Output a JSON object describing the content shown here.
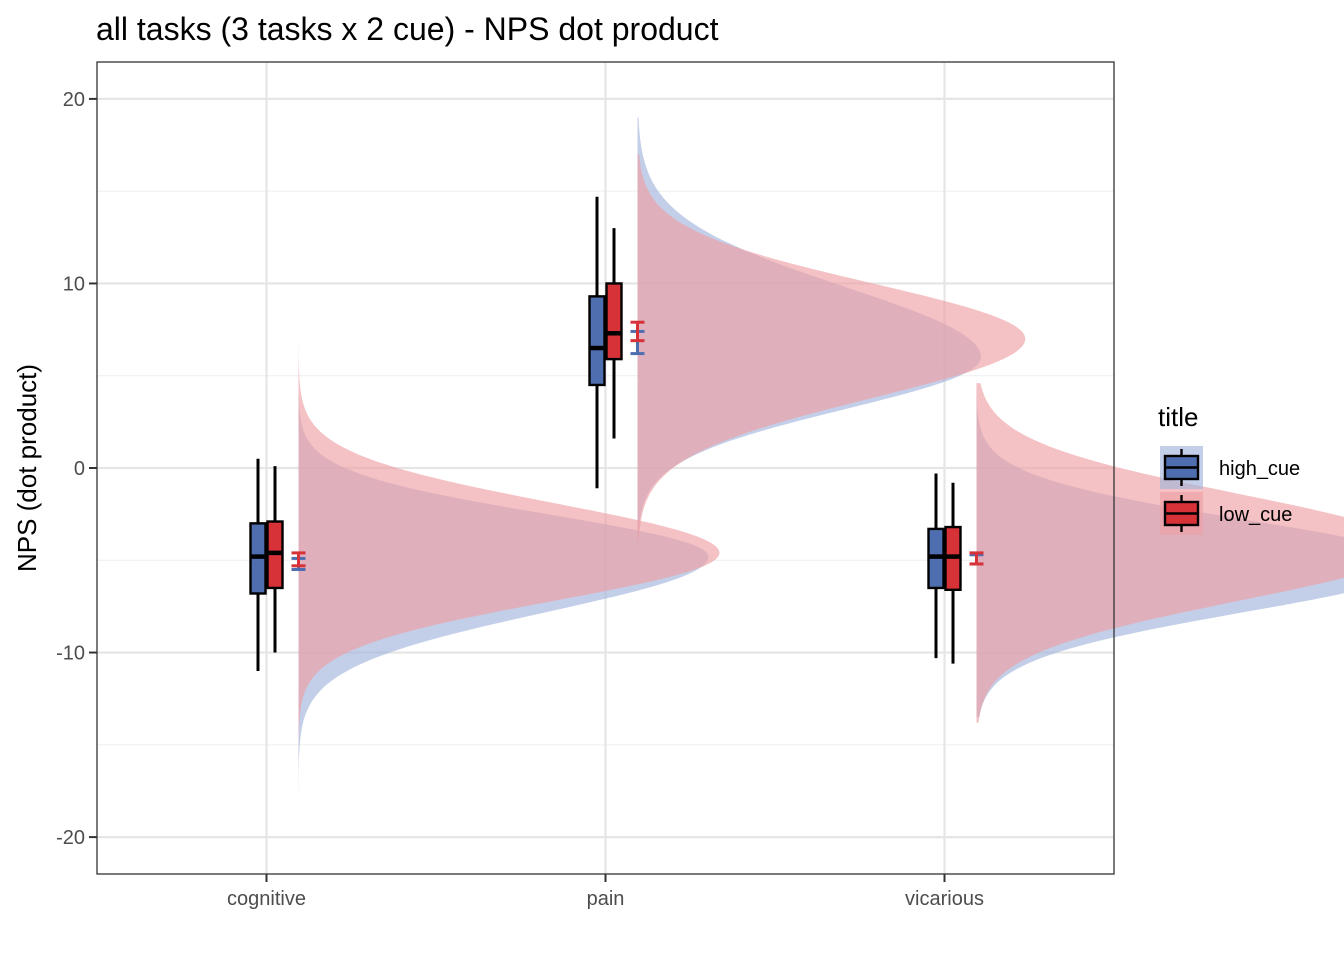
{
  "chart_data": {
    "type": "raincloud",
    "title": "all tasks  (3 tasks x 2 cue) - NPS dot product",
    "xlabel": "",
    "ylabel": "NPS (dot product)",
    "ylim": [
      -22,
      22
    ],
    "yticks": [
      -20,
      -10,
      0,
      10,
      20
    ],
    "grid": true,
    "legend": {
      "title": "title",
      "position": "right"
    },
    "categories": [
      "cognitive",
      "pain",
      "vicarious"
    ],
    "series": [
      {
        "name": "high_cue",
        "color": "#4F6EAF",
        "density_color": "#A3B5DC",
        "box": [
          {
            "whisker_low": -11.0,
            "q1": -6.8,
            "median": -4.8,
            "q3": -3.0,
            "whisker_high": 0.5
          },
          {
            "whisker_low": -1.1,
            "q1": 4.5,
            "median": 6.5,
            "q3": 9.3,
            "whisker_high": 14.7
          },
          {
            "whisker_low": -10.3,
            "q1": -6.5,
            "median": -4.8,
            "q3": -3.3,
            "whisker_high": -0.3
          }
        ],
        "mean_ci": [
          {
            "mean": -5.2,
            "low": -5.5,
            "high": -4.9
          },
          {
            "mean": 7.1,
            "low": 6.2,
            "high": 7.4
          },
          {
            "mean": -5.0,
            "low": -5.2,
            "high": -4.7
          }
        ],
        "density": [
          {
            "min": -18.5,
            "max": 4.0,
            "mode": -4.8,
            "peak": 0.37,
            "sd_low": 3.0,
            "sd_high": 2.3
          },
          {
            "min": -5.5,
            "max": 19.0,
            "mode": 6.0,
            "peak": 0.31,
            "sd_low": 2.8,
            "sd_high": 3.8
          },
          {
            "min": -13.5,
            "max": 4.9,
            "mode": -5.2,
            "peak": 0.4,
            "sd_low": 2.6,
            "sd_high": 2.4
          }
        ]
      },
      {
        "name": "low_cue",
        "color": "#D73238",
        "density_color": "#EEA0A4",
        "box": [
          {
            "whisker_low": -10.0,
            "q1": -6.5,
            "median": -4.6,
            "q3": -2.9,
            "whisker_high": 0.1
          },
          {
            "whisker_low": 1.6,
            "q1": 5.9,
            "median": 7.3,
            "q3": 10.0,
            "whisker_high": 13.0
          },
          {
            "whisker_low": -10.6,
            "q1": -6.6,
            "median": -4.8,
            "q3": -3.2,
            "whisker_high": -0.8
          }
        ],
        "mean_ci": [
          {
            "mean": -5.0,
            "low": -5.3,
            "high": -4.6
          },
          {
            "mean": 7.2,
            "low": 6.9,
            "high": 7.9
          },
          {
            "mean": -4.9,
            "low": -5.2,
            "high": -4.6
          }
        ],
        "density": [
          {
            "min": -18.0,
            "max": 6.7,
            "mode": -4.6,
            "peak": 0.38,
            "sd_low": 2.6,
            "sd_high": 2.7
          },
          {
            "min": -4.0,
            "max": 17.0,
            "mode": 7.0,
            "peak": 0.35,
            "sd_low": 3.2,
            "sd_high": 3.0
          },
          {
            "min": -13.8,
            "max": 4.6,
            "mode": -4.3,
            "peak": 0.39,
            "sd_low": 2.9,
            "sd_high": 2.9
          }
        ]
      }
    ]
  }
}
